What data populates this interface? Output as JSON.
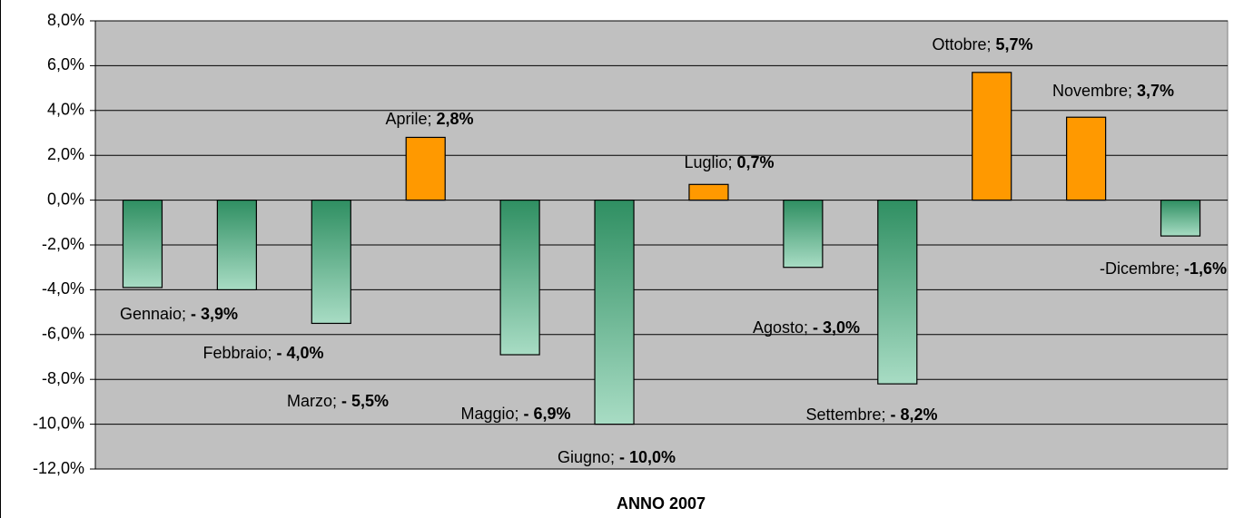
{
  "chart_data": {
    "type": "bar",
    "categories": [
      "Gennaio;",
      "Febbraio;",
      "Marzo;",
      "Aprile;",
      "Maggio;",
      "Giugno;",
      "Luglio;",
      "Agosto;",
      "Settembre;",
      "Ottobre;",
      "Novembre;",
      "-Dicembre;"
    ],
    "values": [
      -3.9,
      -4.0,
      -5.5,
      2.8,
      -6.9,
      -10.0,
      0.7,
      -3.0,
      -8.2,
      5.7,
      3.7,
      -1.6
    ],
    "value_labels": [
      "- 3,9%",
      "- 4,0%",
      "- 5,5%",
      "2,8%",
      "- 6,9%",
      "- 10,0%",
      "0,7%",
      "- 3,0%",
      "- 8,2%",
      "5,7%",
      "3,7%",
      "-1,6%"
    ],
    "x_label": "ANNO 2007",
    "colors": {
      "negative": [
        "#2f8f62",
        "#a8dcc4"
      ],
      "positive": "#ff9900",
      "plot": "#c0c0c0"
    },
    "ylim": [
      -12,
      8
    ],
    "yticks": [
      {
        "value": -12,
        "label": "-12,0%"
      },
      {
        "value": -10,
        "label": "-10,0%"
      },
      {
        "value": -8,
        "label": "-8,0%"
      },
      {
        "value": -6,
        "label": "-6,0%"
      },
      {
        "value": -4,
        "label": "-4,0%"
      },
      {
        "value": -2,
        "label": "-2,0%"
      },
      {
        "value": 0,
        "label": "0,0%"
      },
      {
        "value": 2,
        "label": "2,0%"
      },
      {
        "value": 4,
        "label": "4,0%"
      },
      {
        "value": 6,
        "label": "6,0%"
      },
      {
        "value": 8,
        "label": "8,0%"
      }
    ],
    "grid": true
  }
}
